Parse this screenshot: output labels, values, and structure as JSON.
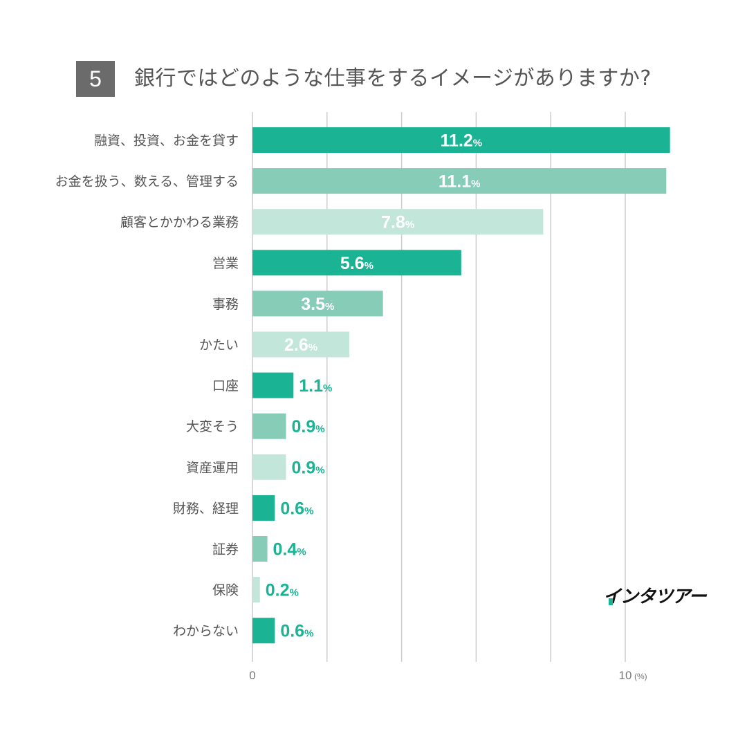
{
  "question": {
    "number": "5",
    "title": "銀行ではどのような仕事をするイメージがありますか?"
  },
  "logo": {
    "text": "インタツアー"
  },
  "colors": {
    "primary": "#1ab394",
    "medium": "#86ccb6",
    "light": "#c2e6da",
    "label_text": "#555555",
    "grid": "#cccccc"
  },
  "chart_data": {
    "type": "bar",
    "orientation": "horizontal",
    "title": "銀行ではどのような仕事をするイメージがありますか?",
    "categories": [
      "融資、投資、お金を貸す",
      "お金を扱う、数える、管理する",
      "顧客とかかわる業務",
      "営業",
      "事務",
      "かたい",
      "口座",
      "大変そう",
      "資産運用",
      "財務、経理",
      "証券",
      "保険",
      "わからない"
    ],
    "values": [
      11.2,
      11.1,
      7.8,
      5.6,
      3.5,
      2.6,
      1.1,
      0.9,
      0.9,
      0.6,
      0.4,
      0.2,
      0.6
    ],
    "value_labels": [
      "11.2",
      "11.1",
      "7.8",
      "5.6",
      "3.5",
      "2.6",
      "1.1",
      "0.9",
      "0.9",
      "0.6",
      "0.4",
      "0.2",
      "0.6"
    ],
    "value_suffix": "%",
    "xlim": [
      0,
      12
    ],
    "ticks": [
      0,
      10
    ],
    "tick_labels": [
      "0",
      "10"
    ],
    "x_unit": "(%)",
    "gridlines": [
      0,
      2,
      4,
      6,
      8,
      10
    ],
    "bar_color_cycle": [
      "primary",
      "medium",
      "light"
    ]
  }
}
